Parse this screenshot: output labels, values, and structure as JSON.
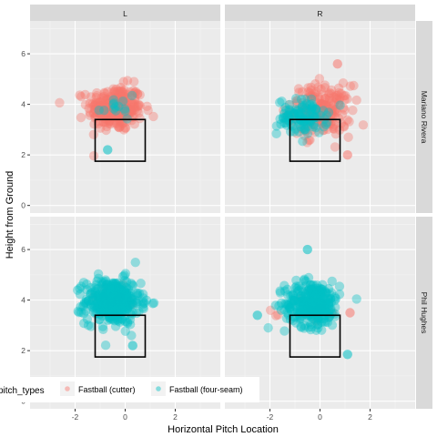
{
  "chart_data": {
    "type": "scatter",
    "xlabel": "Horizontal Pitch Location",
    "ylabel": "Height from Ground",
    "xlim": [
      -3.8,
      3.8
    ],
    "ylim": [
      -0.3,
      7.3
    ],
    "x_ticks": [
      -2,
      0,
      2
    ],
    "y_ticks": [
      0,
      2,
      4,
      6
    ],
    "grid": true,
    "legend_position": "bottom-left",
    "legend_title": "pitch_types",
    "col_facets": [
      "L",
      "R"
    ],
    "row_facets": [
      "Mariano Rivera",
      "Phil Hughes"
    ],
    "strike_zone": {
      "x": [
        -1.2,
        0.8
      ],
      "y": [
        1.75,
        3.4
      ]
    },
    "colors": {
      "Fastball (cutter)": "#F8766D",
      "Fastball (four-seam)": "#00BFC4"
    },
    "series": [
      {
        "name": "Fastball (cutter)",
        "panel": "Mariano Rivera / L",
        "center": [
          -0.4,
          3.85
        ],
        "spread": [
          0.55,
          0.45
        ],
        "n": 260
      },
      {
        "name": "Fastball (four-seam)",
        "panel": "Mariano Rivera / L",
        "center": [
          -0.35,
          3.9
        ],
        "spread": [
          0.4,
          0.45
        ],
        "n": 14
      },
      {
        "name": "Fastball (cutter)",
        "panel": "Mariano Rivera / R",
        "center": [
          0.05,
          3.75
        ],
        "spread": [
          0.6,
          0.5
        ],
        "n": 200
      },
      {
        "name": "Fastball (four-seam)",
        "panel": "Mariano Rivera / R",
        "center": [
          -0.7,
          3.5
        ],
        "spread": [
          0.5,
          0.35
        ],
        "n": 110
      },
      {
        "name": "Fastball (cutter)",
        "panel": "Phil Hughes / L",
        "center": [
          -0.5,
          4.1
        ],
        "spread": [
          0.5,
          0.35
        ],
        "n": 8
      },
      {
        "name": "Fastball (four-seam)",
        "panel": "Phil Hughes / L",
        "center": [
          -0.5,
          3.95
        ],
        "spread": [
          0.55,
          0.45
        ],
        "n": 380
      },
      {
        "name": "Fastball (cutter)",
        "panel": "Phil Hughes / R",
        "center": [
          -0.1,
          3.5
        ],
        "spread": [
          0.6,
          0.4
        ],
        "n": 12
      },
      {
        "name": "Fastball (four-seam)",
        "panel": "Phil Hughes / R",
        "center": [
          -0.3,
          3.85
        ],
        "spread": [
          0.55,
          0.45
        ],
        "n": 300
      }
    ],
    "outliers": [
      {
        "name": "Fastball (four-seam)",
        "panel": "Mariano Rivera / L",
        "x": -0.7,
        "y": 2.2
      },
      {
        "name": "Fastball (cutter)",
        "panel": "Mariano Rivera / R",
        "x": 0.7,
        "y": 5.6
      },
      {
        "name": "Fastball (cutter)",
        "panel": "Mariano Rivera / R",
        "x": 1.1,
        "y": 2.0
      },
      {
        "name": "Fastball (four-seam)",
        "panel": "Phil Hughes / L",
        "x": 0.3,
        "y": 2.2
      },
      {
        "name": "Fastball (four-seam)",
        "panel": "Phil Hughes / R",
        "x": -0.5,
        "y": 6.0
      },
      {
        "name": "Fastball (four-seam)",
        "panel": "Phil Hughes / R",
        "x": 1.1,
        "y": 1.85
      },
      {
        "name": "Fastball (four-seam)",
        "panel": "Phil Hughes / R",
        "x": -2.5,
        "y": 3.4
      },
      {
        "name": "Fastball (cutter)",
        "panel": "Phil Hughes / R",
        "x": 1.2,
        "y": 3.5
      }
    ]
  }
}
